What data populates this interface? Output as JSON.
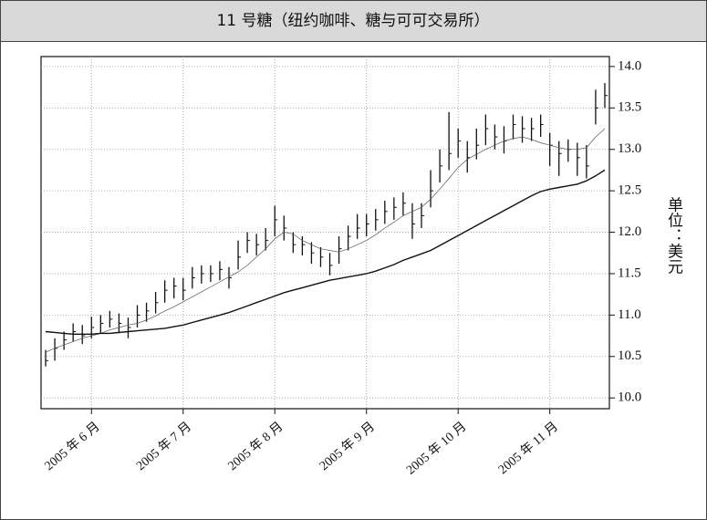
{
  "chart_data": {
    "type": "ohlc",
    "title": "11 号糖（纽约咖啡、糖与可可交易所）",
    "y_label": "单位：美元",
    "categories": [
      null,
      null,
      null,
      null,
      null,
      "2005 年 6 月",
      null,
      null,
      null,
      null,
      null,
      null,
      null,
      null,
      null,
      "2005 年 7 月",
      null,
      null,
      null,
      null,
      null,
      null,
      null,
      null,
      null,
      "2005 年 8 月",
      null,
      null,
      null,
      null,
      null,
      null,
      null,
      null,
      null,
      "2005 年 9 月",
      null,
      null,
      null,
      null,
      null,
      null,
      null,
      null,
      null,
      "2005 年 10 月",
      null,
      null,
      null,
      null,
      null,
      null,
      null,
      null,
      null,
      "2005 年 11 月",
      null,
      null,
      null,
      null,
      null,
      null
    ],
    "high": [
      10.58,
      10.72,
      10.8,
      10.9,
      10.88,
      10.98,
      11.0,
      11.05,
      11.02,
      10.97,
      11.12,
      11.15,
      11.28,
      11.42,
      11.45,
      11.45,
      11.58,
      11.6,
      11.6,
      11.65,
      11.58,
      11.9,
      12.0,
      11.98,
      12.05,
      12.32,
      12.2,
      12.0,
      11.95,
      11.88,
      11.82,
      11.75,
      11.95,
      12.08,
      12.22,
      12.22,
      12.28,
      12.38,
      12.42,
      12.48,
      12.35,
      12.35,
      12.75,
      13.0,
      13.45,
      13.25,
      13.1,
      13.25,
      13.42,
      13.3,
      13.28,
      13.42,
      13.4,
      13.38,
      13.42,
      13.2,
      13.1,
      13.12,
      13.08,
      13.05,
      13.72,
      13.8
    ],
    "low": [
      10.38,
      10.45,
      10.58,
      10.68,
      10.65,
      10.72,
      10.78,
      10.85,
      10.78,
      10.72,
      10.85,
      10.92,
      11.02,
      11.15,
      11.2,
      11.18,
      11.32,
      11.38,
      11.4,
      11.42,
      11.32,
      11.55,
      11.75,
      11.72,
      11.78,
      11.95,
      11.9,
      11.75,
      11.72,
      11.62,
      11.58,
      11.48,
      11.62,
      11.78,
      11.92,
      11.95,
      12.02,
      12.1,
      12.15,
      12.2,
      11.92,
      12.05,
      12.3,
      12.6,
      12.75,
      12.9,
      12.72,
      12.88,
      13.05,
      13.0,
      12.95,
      13.12,
      13.08,
      13.1,
      13.15,
      12.8,
      12.68,
      12.85,
      12.68,
      12.65,
      13.3,
      13.5
    ],
    "close": [
      10.45,
      10.6,
      10.7,
      10.8,
      10.75,
      10.85,
      10.9,
      10.95,
      10.9,
      10.85,
      11.0,
      11.05,
      11.15,
      11.3,
      11.35,
      11.3,
      11.45,
      11.5,
      11.5,
      11.55,
      11.45,
      11.7,
      11.9,
      11.85,
      11.9,
      12.15,
      12.05,
      11.85,
      11.85,
      11.75,
      11.7,
      11.6,
      11.8,
      11.95,
      12.05,
      12.1,
      12.15,
      12.25,
      12.3,
      12.35,
      12.1,
      12.2,
      12.5,
      12.8,
      12.95,
      13.1,
      12.9,
      13.05,
      13.25,
      13.15,
      13.1,
      13.3,
      13.25,
      13.25,
      13.3,
      13.05,
      12.95,
      13.0,
      12.9,
      12.8,
      13.5,
      13.65
    ],
    "color": "#111111",
    "lines": [
      {
        "color": "#555555",
        "line_width": 0.7,
        "values": [
          10.55,
          10.6,
          10.64,
          10.68,
          10.72,
          10.75,
          10.78,
          10.82,
          10.85,
          10.88,
          10.9,
          10.94,
          10.99,
          11.05,
          11.1,
          11.16,
          11.22,
          11.28,
          11.34,
          11.4,
          11.46,
          11.52,
          11.6,
          11.7,
          11.8,
          11.92,
          12.0,
          11.98,
          11.9,
          11.85,
          11.8,
          11.78,
          11.76,
          11.8,
          11.85,
          11.9,
          11.97,
          12.05,
          12.12,
          12.2,
          12.25,
          12.3,
          12.4,
          12.52,
          12.65,
          12.78,
          12.88,
          12.94,
          13.0,
          13.05,
          13.1,
          13.13,
          13.15,
          13.12,
          13.08,
          13.05,
          13.02,
          13.0,
          13.0,
          13.02,
          13.15,
          13.25
        ]
      },
      {
        "color": "#111111",
        "line_width": 1.4,
        "values": [
          10.8,
          10.79,
          10.78,
          10.77,
          10.77,
          10.77,
          10.78,
          10.78,
          10.79,
          10.8,
          10.81,
          10.82,
          10.83,
          10.84,
          10.86,
          10.88,
          10.91,
          10.94,
          10.97,
          11.0,
          11.03,
          11.07,
          11.11,
          11.15,
          11.19,
          11.23,
          11.27,
          11.3,
          11.33,
          11.36,
          11.39,
          11.42,
          11.44,
          11.46,
          11.48,
          11.5,
          11.53,
          11.57,
          11.61,
          11.66,
          11.7,
          11.74,
          11.78,
          11.84,
          11.9,
          11.96,
          12.02,
          12.08,
          12.14,
          12.2,
          12.26,
          12.32,
          12.38,
          12.44,
          12.49,
          12.52,
          12.54,
          12.56,
          12.58,
          12.62,
          12.68,
          12.75
        ]
      }
    ],
    "ylim": [
      9.87,
      14.12
    ],
    "yticks": [
      {
        "value": 10,
        "label": "10.0"
      },
      {
        "value": 10.5,
        "label": "10.5"
      },
      {
        "value": 11,
        "label": "11.0"
      },
      {
        "value": 11.5,
        "label": "11.5"
      },
      {
        "value": 12,
        "label": "12.0"
      },
      {
        "value": 12.5,
        "label": "12.5"
      },
      {
        "value": 13,
        "label": "13.0"
      },
      {
        "value": 13.5,
        "label": "13.5"
      },
      {
        "value": 14,
        "label": "14.0"
      }
    ],
    "grid": true
  }
}
